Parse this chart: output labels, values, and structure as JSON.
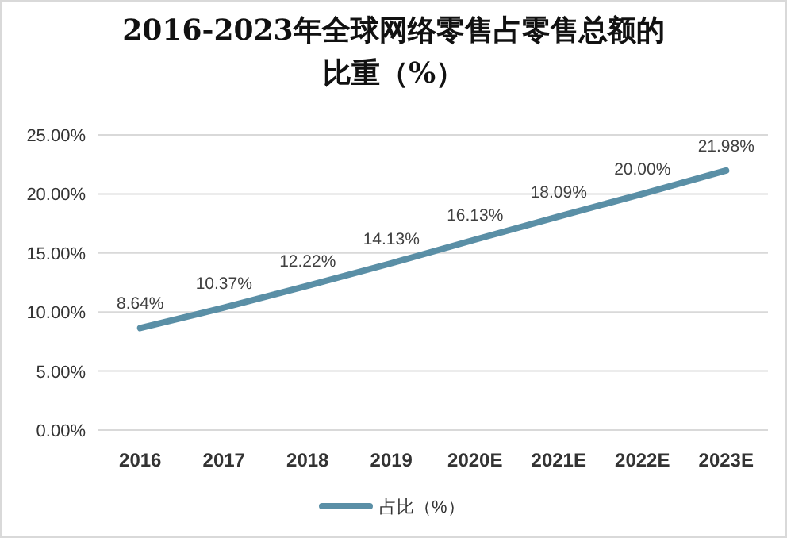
{
  "chart_data": {
    "type": "line",
    "title": "2016-2023年全球网络零售占零售总额的比重（%）",
    "categories": [
      "2016",
      "2017",
      "2018",
      "2019",
      "2020E",
      "2021E",
      "2022E",
      "2023E"
    ],
    "series": [
      {
        "name": "占比（%）",
        "color": "#5a8fa6",
        "values": [
          8.64,
          10.37,
          12.22,
          14.13,
          16.13,
          18.09,
          20.0,
          21.98
        ],
        "value_labels": [
          "8.64%",
          "10.37%",
          "12.22%",
          "14.13%",
          "16.13%",
          "18.09%",
          "20.00%",
          "21.98%"
        ]
      }
    ],
    "ylim": [
      0,
      25
    ],
    "yticks": [
      {
        "value": 0,
        "label": "0.00%"
      },
      {
        "value": 5,
        "label": "5.00%"
      },
      {
        "value": 10,
        "label": "10.00%"
      },
      {
        "value": 15,
        "label": "15.00%"
      },
      {
        "value": 20,
        "label": "20.00%"
      },
      {
        "value": 25,
        "label": "25.00%"
      }
    ],
    "grid": "y",
    "legend": "bottom",
    "marker": "none",
    "line_style": "solid"
  }
}
